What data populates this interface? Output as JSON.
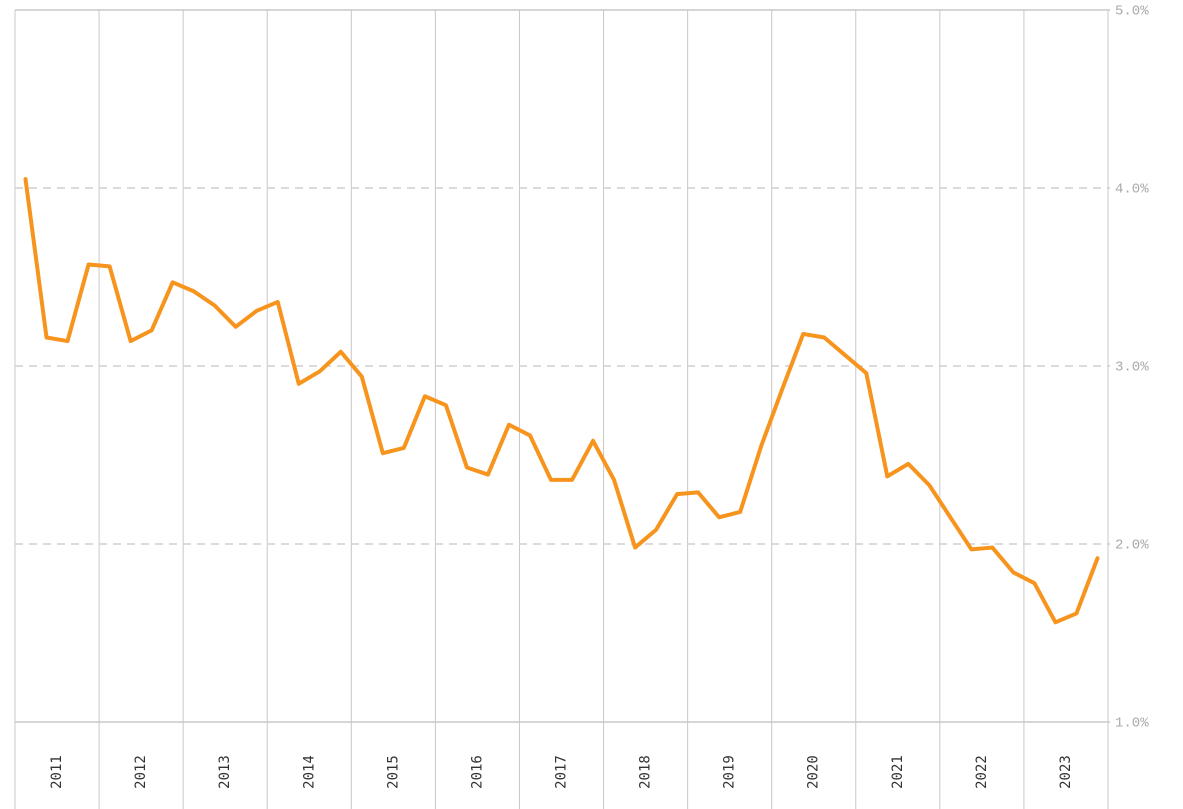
{
  "chart_data": {
    "type": "line",
    "x": [
      2011.125,
      2011.375,
      2011.625,
      2011.875,
      2012.125,
      2012.375,
      2012.625,
      2012.875,
      2013.125,
      2013.375,
      2013.625,
      2013.875,
      2014.125,
      2014.375,
      2014.625,
      2014.875,
      2015.125,
      2015.375,
      2015.625,
      2015.875,
      2016.125,
      2016.375,
      2016.625,
      2016.875,
      2017.125,
      2017.375,
      2017.625,
      2017.875,
      2018.125,
      2018.375,
      2018.625,
      2018.875,
      2019.125,
      2019.375,
      2019.625,
      2019.875,
      2020.125,
      2020.375,
      2020.625,
      2020.875,
      2021.125,
      2021.375,
      2021.625,
      2021.875,
      2022.125,
      2022.375,
      2022.625,
      2022.875,
      2023.125,
      2023.375,
      2023.625,
      2023.875
    ],
    "values": [
      4.05,
      3.16,
      3.14,
      3.57,
      3.56,
      3.14,
      3.2,
      3.47,
      3.42,
      3.34,
      3.22,
      3.31,
      3.36,
      2.9,
      2.97,
      3.08,
      2.94,
      2.51,
      2.54,
      2.83,
      2.78,
      2.43,
      2.39,
      2.67,
      2.61,
      2.36,
      2.36,
      2.58,
      2.36,
      1.98,
      2.08,
      2.28,
      2.29,
      2.15,
      2.18,
      2.55,
      2.87,
      3.18,
      3.16,
      3.06,
      2.96,
      2.38,
      2.45,
      2.33,
      2.15,
      1.97,
      1.98,
      1.84,
      1.78,
      1.56,
      1.61,
      1.92
    ],
    "color": "#f7941d",
    "xlim": [
      2011,
      2024
    ],
    "xticks": [
      2011,
      2012,
      2013,
      2014,
      2015,
      2016,
      2017,
      2018,
      2019,
      2020,
      2021,
      2022,
      2023
    ],
    "ylim": [
      1,
      5
    ],
    "yticks": [
      {
        "value": 1,
        "label": "1.0%"
      },
      {
        "value": 2,
        "label": "2.0%"
      },
      {
        "value": 3,
        "label": "3.0%"
      },
      {
        "value": 4,
        "label": "4.0%"
      },
      {
        "value": 5,
        "label": "5.0%"
      }
    ],
    "grid": true
  }
}
